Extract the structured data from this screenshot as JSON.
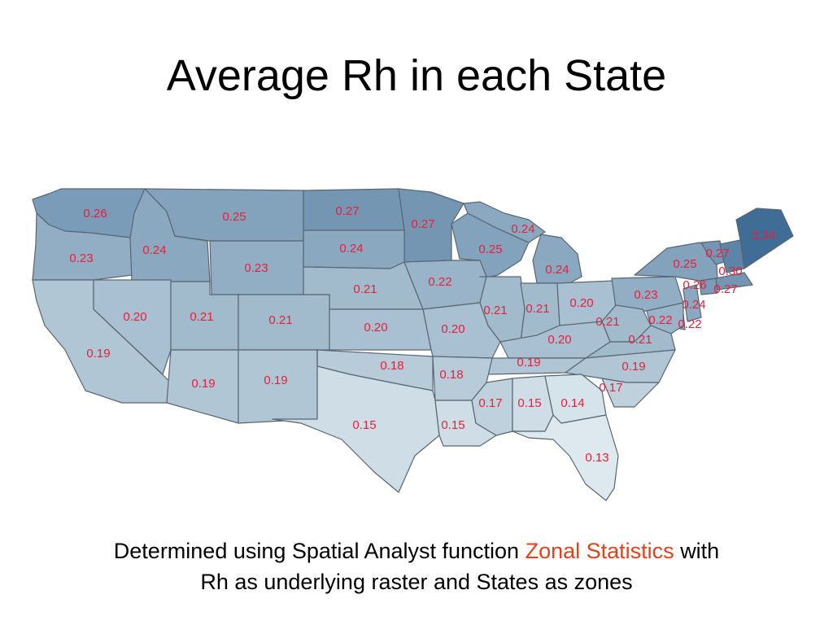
{
  "title": "Average Rh in each State",
  "caption": {
    "part1": "Determined using Spatial Analyst function",
    "highlight": "Zonal Statistics",
    "part2": "with",
    "line2": "Rh as underlying raster and States as zones"
  },
  "colors": {
    "highlight": "#e8401c",
    "label": "#e8203a",
    "shade_low": "#dde9ee",
    "shade_high": "#3f6d96"
  },
  "states": [
    {
      "name": "WA",
      "value": 0.26,
      "label": "0.26"
    },
    {
      "name": "OR",
      "value": 0.23,
      "label": "0.23"
    },
    {
      "name": "ID",
      "value": 0.24,
      "label": "0.24"
    },
    {
      "name": "MT",
      "value": 0.25,
      "label": "0.25"
    },
    {
      "name": "ND",
      "value": 0.27,
      "label": "0.27"
    },
    {
      "name": "MN",
      "value": 0.27,
      "label": "0.27"
    },
    {
      "name": "WI",
      "value": 0.25,
      "label": "0.25"
    },
    {
      "name": "MI_UP",
      "value": 0.24,
      "label": "0.24"
    },
    {
      "name": "MI",
      "value": 0.24,
      "label": "0.24"
    },
    {
      "name": "SD",
      "value": 0.24,
      "label": "0.24"
    },
    {
      "name": "WY",
      "value": 0.23,
      "label": "0.23"
    },
    {
      "name": "NE",
      "value": 0.21,
      "label": "0.21"
    },
    {
      "name": "IA",
      "value": 0.22,
      "label": "0.22"
    },
    {
      "name": "CA",
      "value": 0.19,
      "label": "0.19"
    },
    {
      "name": "NV",
      "value": 0.2,
      "label": "0.20"
    },
    {
      "name": "UT",
      "value": 0.21,
      "label": "0.21"
    },
    {
      "name": "CO",
      "value": 0.21,
      "label": "0.21"
    },
    {
      "name": "KS",
      "value": 0.2,
      "label": "0.20"
    },
    {
      "name": "MO",
      "value": 0.2,
      "label": "0.20"
    },
    {
      "name": "IL",
      "value": 0.21,
      "label": "0.21"
    },
    {
      "name": "IN",
      "value": 0.21,
      "label": "0.21"
    },
    {
      "name": "OH",
      "value": 0.2,
      "label": "0.20"
    },
    {
      "name": "PA",
      "value": 0.23,
      "label": "0.23"
    },
    {
      "name": "NY",
      "value": 0.25,
      "label": "0.25"
    },
    {
      "name": "VT",
      "value": 0.27,
      "label": "0.27"
    },
    {
      "name": "NH",
      "value": 0.3,
      "label": "0.30"
    },
    {
      "name": "ME",
      "value": 0.34,
      "label": "0.34"
    },
    {
      "name": "MA",
      "value": 0.27,
      "label": "0.27"
    },
    {
      "name": "CT",
      "value": 0.26,
      "label": "0.26"
    },
    {
      "name": "NJ",
      "value": 0.24,
      "label": "0.24"
    },
    {
      "name": "DE",
      "value": 0.22,
      "label": "0.22"
    },
    {
      "name": "MD",
      "value": 0.22,
      "label": "0.22"
    },
    {
      "name": "WV",
      "value": 0.21,
      "label": "0.21"
    },
    {
      "name": "VA",
      "value": 0.21,
      "label": "0.21"
    },
    {
      "name": "KY",
      "value": 0.2,
      "label": "0.20"
    },
    {
      "name": "TN",
      "value": 0.19,
      "label": "0.19"
    },
    {
      "name": "NC",
      "value": 0.19,
      "label": "0.19"
    },
    {
      "name": "SC",
      "value": 0.17,
      "label": "0.17"
    },
    {
      "name": "AZ",
      "value": 0.19,
      "label": "0.19"
    },
    {
      "name": "NM",
      "value": 0.19,
      "label": "0.19"
    },
    {
      "name": "OK",
      "value": 0.18,
      "label": "0.18"
    },
    {
      "name": "AR",
      "value": 0.18,
      "label": "0.18"
    },
    {
      "name": "TX",
      "value": 0.15,
      "label": "0.15"
    },
    {
      "name": "LA",
      "value": 0.15,
      "label": "0.15"
    },
    {
      "name": "MS",
      "value": 0.17,
      "label": "0.17"
    },
    {
      "name": "AL",
      "value": 0.15,
      "label": "0.15"
    },
    {
      "name": "GA",
      "value": 0.14,
      "label": "0.14"
    },
    {
      "name": "FL",
      "value": 0.13,
      "label": "0.13"
    }
  ]
}
